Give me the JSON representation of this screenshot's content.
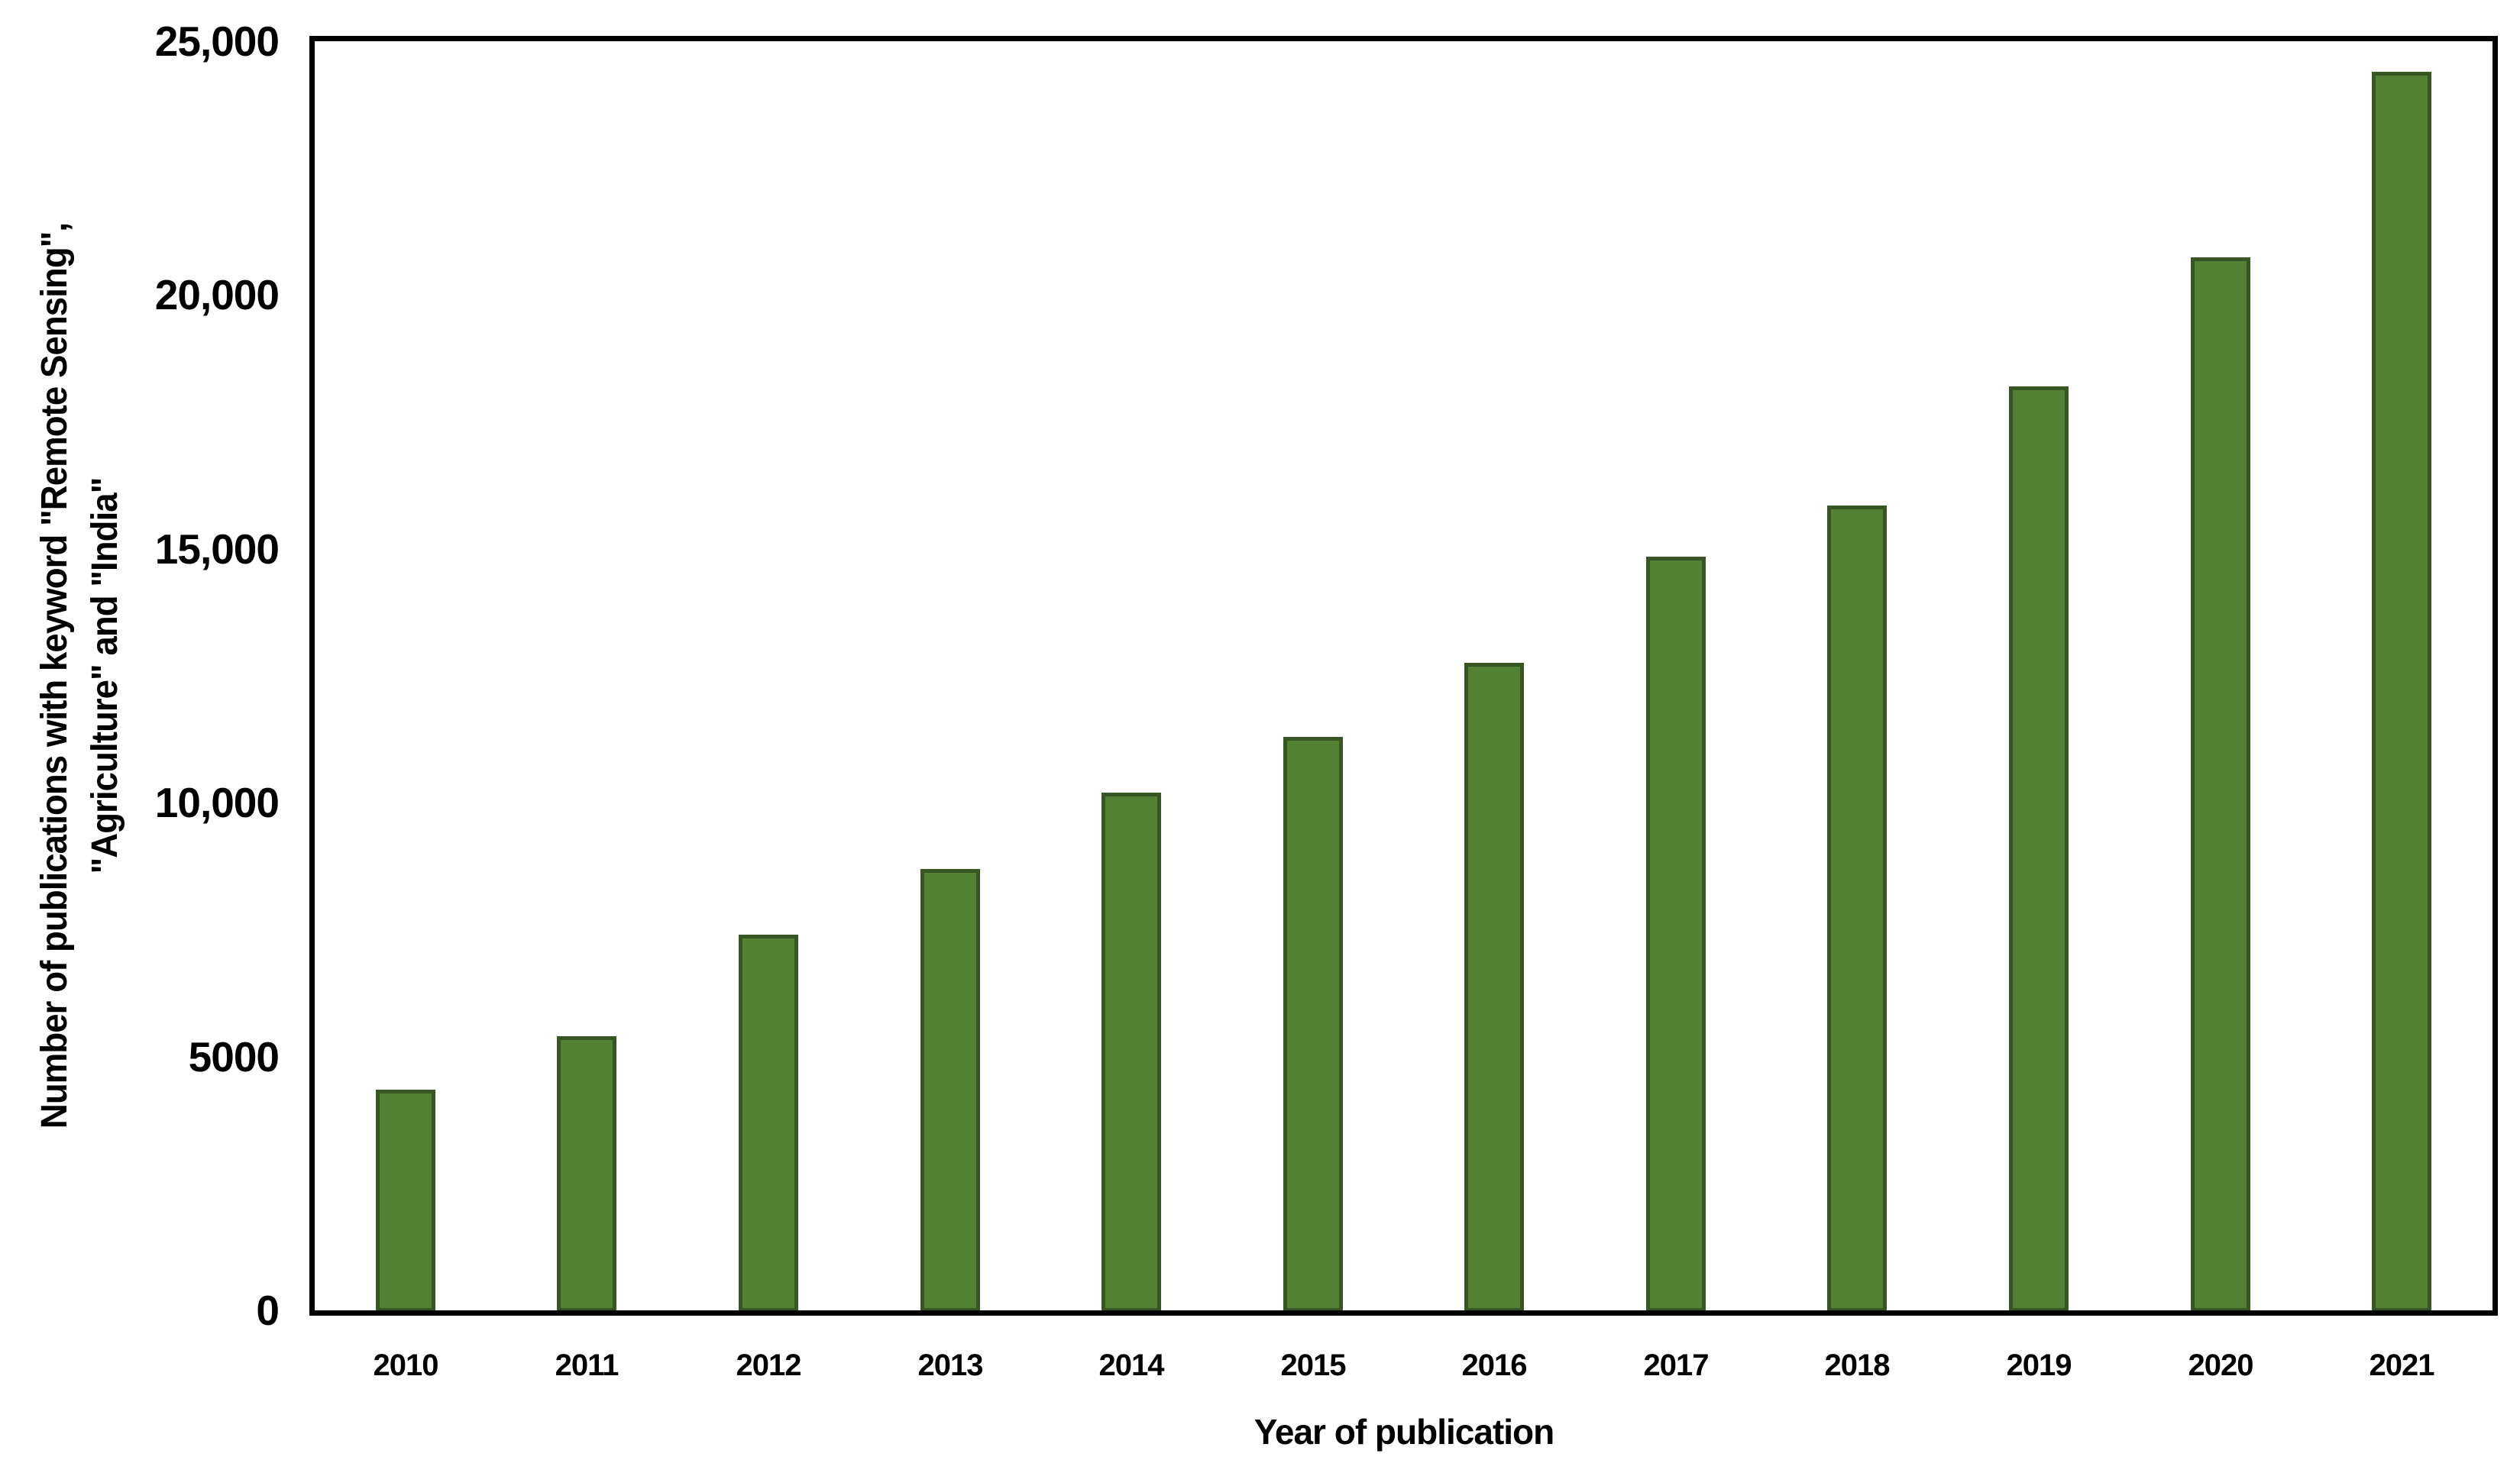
{
  "chart_data": {
    "type": "bar",
    "title": "",
    "xlabel": "Year of publication",
    "ylabel_line1": "Number of publications with keyword \"Remote Sensing\",",
    "ylabel_line2": "\"Agriculture\" and \"India\"",
    "categories": [
      "2010",
      "2011",
      "2012",
      "2013",
      "2014",
      "2015",
      "2016",
      "2017",
      "2018",
      "2019",
      "2020",
      "2021"
    ],
    "values": [
      4350,
      5400,
      7400,
      8700,
      10200,
      11300,
      12750,
      14850,
      15850,
      18200,
      20750,
      24400
    ],
    "ylim": [
      0,
      25000
    ],
    "yticks": [
      {
        "label": "0",
        "value": 0
      },
      {
        "label": "5000",
        "value": 5000
      },
      {
        "label": "10,000",
        "value": 10000
      },
      {
        "label": "15,000",
        "value": 15000
      },
      {
        "label": "20,000",
        "value": 20000
      },
      {
        "label": "25,000",
        "value": 25000
      }
    ],
    "grid": false,
    "legend": false,
    "colors": {
      "bar_fill": "#538234",
      "bar_border": "#375623",
      "axis": "#000000",
      "text": "#000000",
      "background": "#ffffff"
    }
  }
}
